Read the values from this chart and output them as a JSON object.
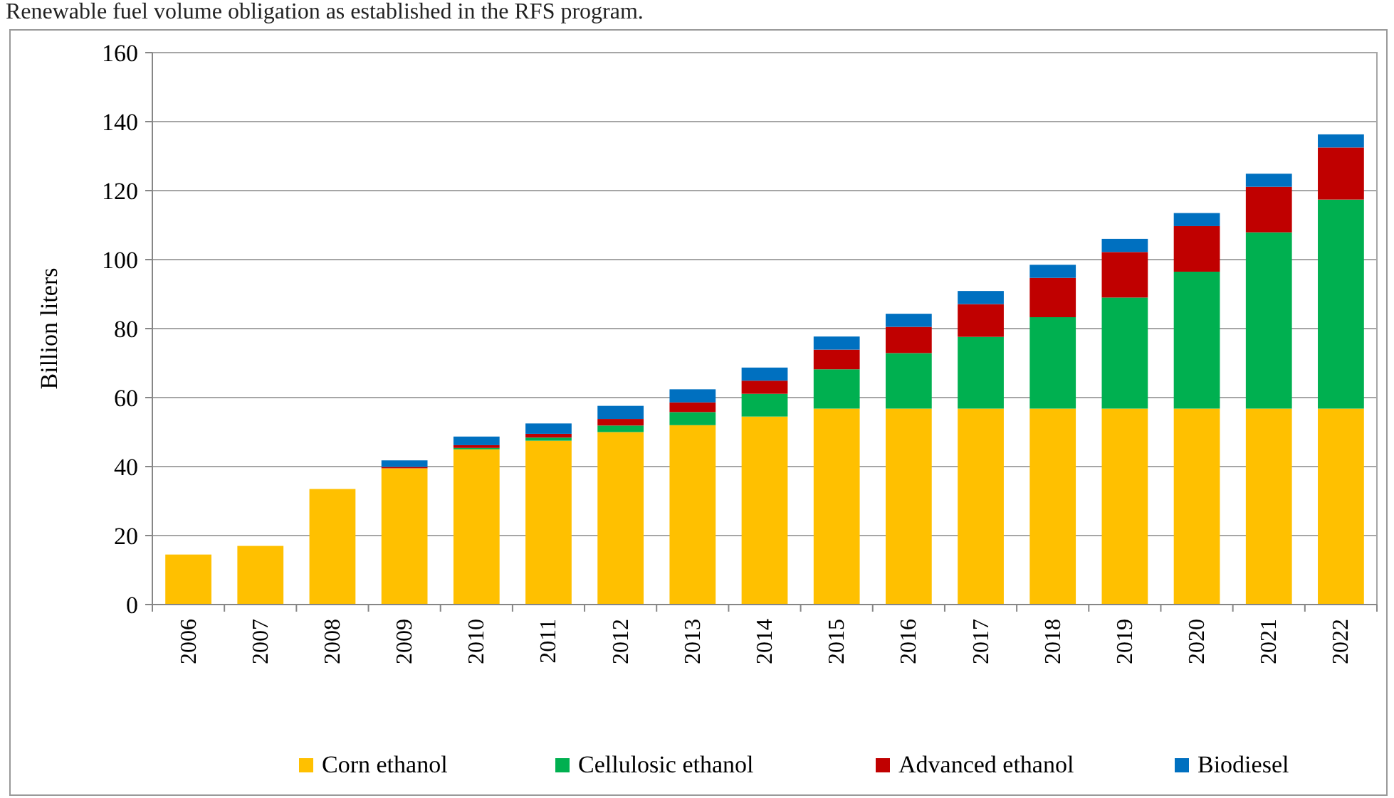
{
  "chart_data": {
    "type": "bar",
    "stacked": true,
    "title": "Renewable fuel volume obligation as established in the RFS program.",
    "ylabel": "Billion liters",
    "categories": [
      "2006",
      "2007",
      "2008",
      "2009",
      "2010",
      "2011",
      "2012",
      "2013",
      "2014",
      "2015",
      "2016",
      "2017",
      "2018",
      "2019",
      "2020",
      "2021",
      "2022"
    ],
    "series": [
      {
        "name": "Corn ethanol",
        "color": "#ffc000",
        "values": [
          14.5,
          17,
          33.5,
          39.5,
          45,
          47.5,
          50,
          52,
          54.5,
          56.8,
          56.8,
          56.8,
          56.8,
          56.8,
          56.8,
          56.8,
          56.8
        ]
      },
      {
        "name": "Cellulosic ethanol",
        "color": "#00b050",
        "values": [
          0,
          0,
          0,
          0,
          0.4,
          0.9,
          1.9,
          3.8,
          6.6,
          11.4,
          16.1,
          20.8,
          26.5,
          32.2,
          39.7,
          51.1,
          60.6
        ]
      },
      {
        "name": "Advanced ethanol",
        "color": "#c00000",
        "values": [
          0,
          0,
          0,
          0.4,
          0.8,
          1.1,
          1.9,
          2.8,
          3.8,
          5.7,
          7.6,
          9.5,
          11.4,
          13.2,
          13.2,
          13.2,
          15.1
        ]
      },
      {
        "name": "Biodiesel",
        "color": "#0070c0",
        "values": [
          0,
          0,
          0,
          1.9,
          2.5,
          3,
          3.8,
          3.8,
          3.8,
          3.8,
          3.8,
          3.8,
          3.8,
          3.8,
          3.8,
          3.8,
          3.8
        ]
      }
    ],
    "ylim": [
      0,
      160
    ],
    "yticks": [
      0,
      20,
      40,
      60,
      80,
      100,
      120,
      140,
      160
    ],
    "grid": "y",
    "legend": "bottom"
  }
}
